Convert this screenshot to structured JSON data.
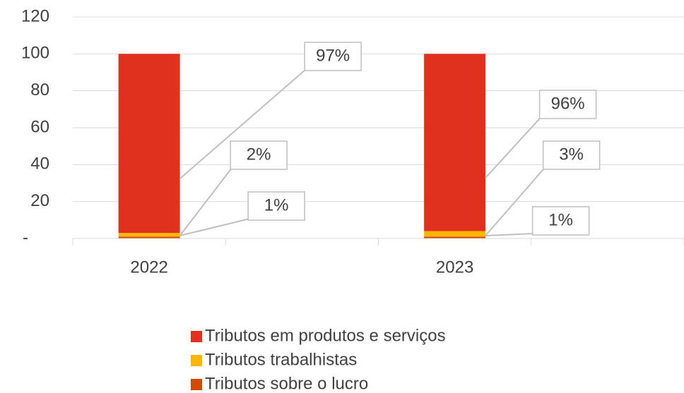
{
  "chart_data": {
    "type": "stacked_bar",
    "categories": [
      "2022",
      null,
      "2023",
      null
    ],
    "series": [
      {
        "name": "Tributos sobre o lucro",
        "color": "#d04a02",
        "values": [
          1,
          null,
          1,
          null
        ],
        "value_labels": [
          "1%",
          null,
          "1%",
          null
        ]
      },
      {
        "name": "Tributos trabalhistas",
        "color": "#ffb600",
        "values": [
          2,
          null,
          3,
          null
        ],
        "value_labels": [
          "2%",
          null,
          "3%",
          null
        ]
      },
      {
        "name": "Tributos em produtos e serviços",
        "color": "#e0301e",
        "values": [
          97,
          null,
          96,
          null
        ],
        "value_labels": [
          "97%",
          null,
          "96%",
          null
        ]
      }
    ],
    "ylim": [
      0,
      120
    ],
    "yticks": [
      {
        "value": 0,
        "label": "-"
      },
      20,
      40,
      60,
      80,
      100,
      120
    ],
    "grid": true
  }
}
